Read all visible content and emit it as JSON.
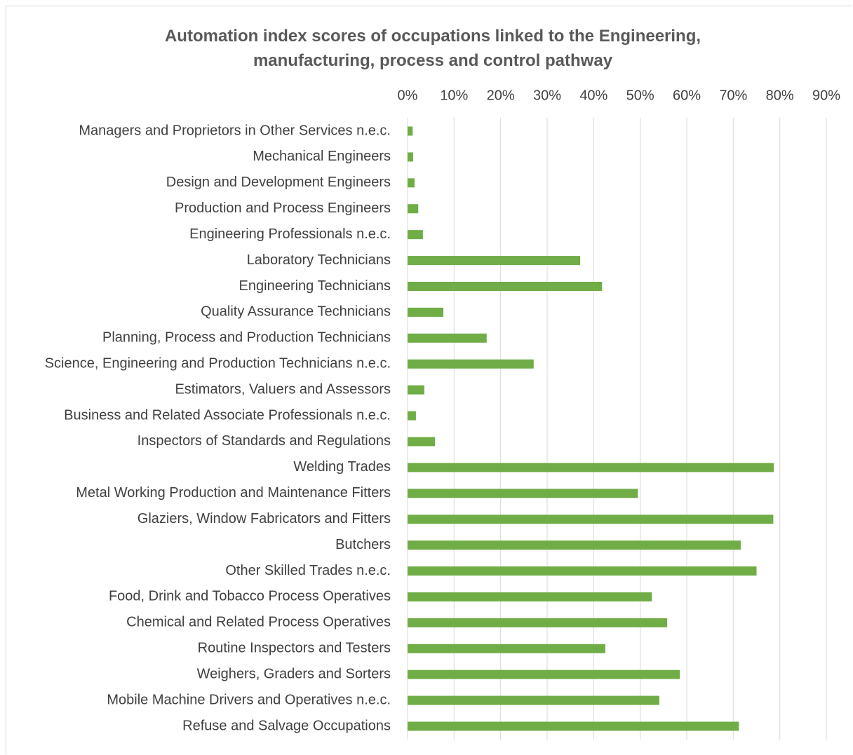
{
  "chart_data": {
    "type": "bar",
    "orientation": "horizontal",
    "title": "Automation index scores of occupations linked to the Engineering, manufacturing, process and control pathway",
    "categories": [
      "Managers and Proprietors in Other Services n.e.c.",
      "Mechanical Engineers",
      "Design and Development Engineers",
      "Production and Process Engineers",
      "Engineering Professionals n.e.c.",
      "Laboratory Technicians",
      "Engineering Technicians",
      "Quality Assurance Technicians",
      "Planning, Process and Production Technicians",
      "Science, Engineering and Production Technicians n.e.c.",
      "Estimators, Valuers and Assessors",
      "Business and Related Associate Professionals n.e.c.",
      "Inspectors of Standards and Regulations",
      "Welding Trades",
      "Metal Working Production and Maintenance Fitters",
      "Glaziers, Window Fabricators and Fitters",
      "Butchers",
      "Other Skilled Trades n.e.c.",
      "Food, Drink and Tobacco Process Operatives",
      "Chemical and Related Process Operatives",
      "Routine Inspectors and Testers",
      "Weighers, Graders and Sorters",
      "Mobile Machine Drivers and Operatives n.e.c.",
      "Refuse and Salvage Occupations"
    ],
    "values": [
      1.1,
      1.2,
      1.5,
      2.3,
      3.3,
      37.1,
      41.8,
      7.7,
      17.0,
      27.1,
      3.6,
      1.8,
      5.9,
      78.7,
      49.5,
      78.6,
      71.6,
      75.0,
      52.5,
      55.8,
      42.5,
      58.5,
      54.1,
      71.2
    ],
    "color": "#70ad47",
    "xlim": [
      0,
      90
    ],
    "xticks": [
      {
        "value": 0,
        "label": "0%"
      },
      {
        "value": 10,
        "label": "10%"
      },
      {
        "value": 20,
        "label": "20%"
      },
      {
        "value": 30,
        "label": "30%"
      },
      {
        "value": 40,
        "label": "40%"
      },
      {
        "value": 50,
        "label": "50%"
      },
      {
        "value": 60,
        "label": "60%"
      },
      {
        "value": 70,
        "label": "70%"
      },
      {
        "value": 80,
        "label": "80%"
      },
      {
        "value": 90,
        "label": "90%"
      }
    ],
    "grid": true
  }
}
